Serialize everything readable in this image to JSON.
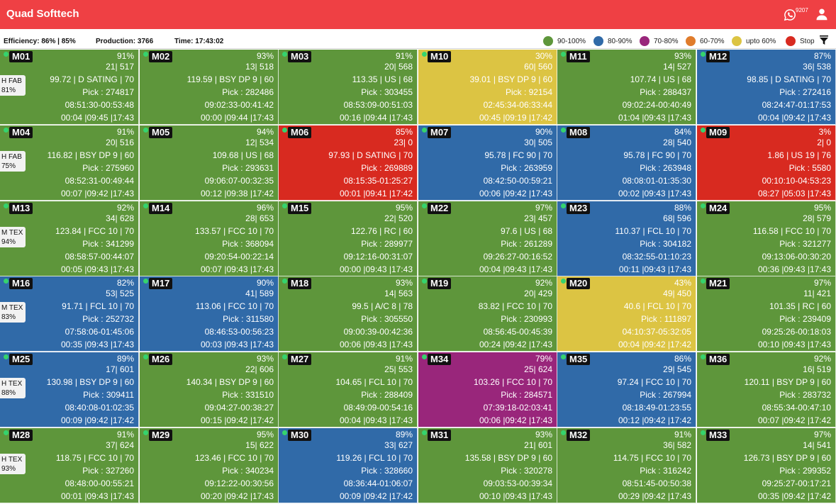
{
  "app": {
    "title": "Quad Softtech",
    "notification_count": "9207"
  },
  "icons": {
    "whatsapp": "whatsapp-icon",
    "user": "user-icon",
    "filter": "filter-icon",
    "status_dot": "status-dot-icon"
  },
  "status": {
    "efficiency_label": "Efficiency:",
    "efficiency_value": "86% | 85%",
    "production_label": "Production:",
    "production_value": "3766",
    "time_label": "Time:",
    "time_value": "17:43:02"
  },
  "legend": [
    {
      "label": "90-100%",
      "color": "#5e963b"
    },
    {
      "label": "80-90%",
      "color": "#306aa8"
    },
    {
      "label": "70-80%",
      "color": "#99267b"
    },
    {
      "label": "60-70%",
      "color": "#e07c2c"
    },
    {
      "label": "upto 60%",
      "color": "#dcc443"
    },
    {
      "label": "Stop",
      "color": "#d82a20"
    }
  ],
  "machines": [
    {
      "id": "M01",
      "pct": "91%",
      "count": "21| 517",
      "design": "99.72 | D SATING | 70",
      "pick": "Pick : 274817",
      "timing": "08:51:30-00:53:48",
      "shift": "00:04 |09:45 |17:43",
      "color": "#5e963b",
      "tag1": "H FAB",
      "tag2": "81%"
    },
    {
      "id": "M02",
      "pct": "93%",
      "count": "13| 518",
      "design": "119.59 | BSY DP 9 | 60",
      "pick": "Pick : 282486",
      "timing": "09:02:33-00:41:42",
      "shift": "00:00 |09:44 |17:43",
      "color": "#5e963b"
    },
    {
      "id": "M03",
      "pct": "91%",
      "count": "20| 568",
      "design": "113.35 | US | 68",
      "pick": "Pick : 303455",
      "timing": "08:53:09-00:51:03",
      "shift": "00:16 |09:44 |17:43",
      "color": "#5e963b"
    },
    {
      "id": "M10",
      "pct": "30%",
      "count": "60| 560",
      "design": "39.01 | BSY DP 9 | 60",
      "pick": "Pick : 92154",
      "timing": "02:45:34-06:33:44",
      "shift": "00:45 |09:19 |17:42",
      "color": "#dcc443"
    },
    {
      "id": "M11",
      "pct": "93%",
      "count": "14| 527",
      "design": "107.74 | US | 68",
      "pick": "Pick : 288437",
      "timing": "09:02:24-00:40:49",
      "shift": "01:04 |09:43 |17:43",
      "color": "#5e963b"
    },
    {
      "id": "M12",
      "pct": "87%",
      "count": "36| 538",
      "design": "98.85 | D SATING | 70",
      "pick": "Pick : 272416",
      "timing": "08:24:47-01:17:53",
      "shift": "00:04 |09:42 |17:43",
      "color": "#306aa8"
    },
    {
      "id": "M04",
      "pct": "91%",
      "count": "20| 516",
      "design": "116.82 | BSY DP 9 | 60",
      "pick": "Pick : 275960",
      "timing": "08:52:31-00:49:44",
      "shift": "00:07 |09:42 |17:43",
      "color": "#5e963b",
      "tag1": "H FAB",
      "tag2": "75%"
    },
    {
      "id": "M05",
      "pct": "94%",
      "count": "12| 534",
      "design": "109.68 | US | 68",
      "pick": "Pick : 293631",
      "timing": "09:06:07-00:32:35",
      "shift": "00:12 |09:38 |17:42",
      "color": "#5e963b"
    },
    {
      "id": "M06",
      "pct": "85%",
      "count": "23| 0",
      "design": "97.93 | D SATING | 70",
      "pick": "Pick : 269889",
      "timing": "08:15:35-01:25:27",
      "shift": "00:01 |09:41 |17:42",
      "color": "#d82a20"
    },
    {
      "id": "M07",
      "pct": "90%",
      "count": "30| 505",
      "design": "95.78 | FC 90 | 70",
      "pick": "Pick : 263959",
      "timing": "08:42:50-00:59:21",
      "shift": "00:06 |09:42 |17:43",
      "color": "#306aa8"
    },
    {
      "id": "M08",
      "pct": "84%",
      "count": "28| 540",
      "design": "95.78 | FC 90 | 70",
      "pick": "Pick : 263948",
      "timing": "08:08:01-01:35:30",
      "shift": "00:02 |09:43 |17:43",
      "color": "#306aa8"
    },
    {
      "id": "M09",
      "pct": "3%",
      "count": "2| 0",
      "design": "1.86 | US 19 | 76",
      "pick": "Pick : 5580",
      "timing": "00:10:10-04:53:23",
      "shift": "08:27 |05:03 |17:43",
      "color": "#d82a20"
    },
    {
      "id": "M13",
      "pct": "92%",
      "count": "34| 628",
      "design": "123.84 | FCC 10 | 70",
      "pick": "Pick : 341299",
      "timing": "08:58:57-00:44:07",
      "shift": "00:05 |09:43 |17:43",
      "color": "#5e963b",
      "tag1": "M TEX",
      "tag2": "94%"
    },
    {
      "id": "M14",
      "pct": "96%",
      "count": "28| 653",
      "design": "133.57 | FCC 10 | 70",
      "pick": "Pick : 368094",
      "timing": "09:20:54-00:22:14",
      "shift": "00:07 |09:43 |17:43",
      "color": "#5e963b"
    },
    {
      "id": "M15",
      "pct": "95%",
      "count": "22| 520",
      "design": "122.76 | RC | 60",
      "pick": "Pick : 289977",
      "timing": "09:12:16-00:31:07",
      "shift": "00:00 |09:43 |17:43",
      "color": "#5e963b"
    },
    {
      "id": "M22",
      "pct": "97%",
      "count": "23| 457",
      "design": "97.6 | US | 68",
      "pick": "Pick : 261289",
      "timing": "09:26:27-00:16:52",
      "shift": "00:04 |09:43 |17:43",
      "color": "#5e963b"
    },
    {
      "id": "M23",
      "pct": "88%",
      "count": "68| 596",
      "design": "110.37 | FCL 10 | 70",
      "pick": "Pick : 304182",
      "timing": "08:32:55-01:10:23",
      "shift": "00:11 |09:43 |17:43",
      "color": "#306aa8"
    },
    {
      "id": "M24",
      "pct": "95%",
      "count": "28| 579",
      "design": "116.58 | FCC 10 | 70",
      "pick": "Pick : 321277",
      "timing": "09:13:06-00:30:20",
      "shift": "00:36 |09:43 |17:43",
      "color": "#5e963b"
    },
    {
      "id": "M16",
      "pct": "82%",
      "count": "53| 525",
      "design": "91.71 | FCL 10 | 70",
      "pick": "Pick : 252732",
      "timing": "07:58:06-01:45:06",
      "shift": "00:35 |09:43 |17:43",
      "color": "#306aa8",
      "tag1": "M TEX",
      "tag2": "83%"
    },
    {
      "id": "M17",
      "pct": "90%",
      "count": "41| 589",
      "design": "113.06 | FCC 10 | 70",
      "pick": "Pick : 311580",
      "timing": "08:46:53-00:56:23",
      "shift": "00:03 |09:43 |17:43",
      "color": "#306aa8"
    },
    {
      "id": "M18",
      "pct": "93%",
      "count": "14| 563",
      "design": "99.5 | A/C 8 | 78",
      "pick": "Pick : 305550",
      "timing": "09:00:39-00:42:36",
      "shift": "00:06 |09:43 |17:43",
      "color": "#5e963b"
    },
    {
      "id": "M19",
      "pct": "92%",
      "count": "20| 429",
      "design": "83.82 | FCC 10 | 70",
      "pick": "Pick : 230993",
      "timing": "08:56:45-00:45:39",
      "shift": "00:24 |09:42 |17:43",
      "color": "#5e963b"
    },
    {
      "id": "M20",
      "pct": "43%",
      "count": "49| 450",
      "design": "40.6 | FCL 10 | 70",
      "pick": "Pick : 111897",
      "timing": "04:10:37-05:32:05",
      "shift": "00:04 |09:42 |17:42",
      "color": "#dcc443"
    },
    {
      "id": "M21",
      "pct": "97%",
      "count": "11| 421",
      "design": "101.35 | RC | 60",
      "pick": "Pick : 239409",
      "timing": "09:25:26-00:18:03",
      "shift": "00:10 |09:43 |17:43",
      "color": "#5e963b"
    },
    {
      "id": "M25",
      "pct": "89%",
      "count": "17| 601",
      "design": "130.98 | BSY DP 9 | 60",
      "pick": "Pick : 309411",
      "timing": "08:40:08-01:02:35",
      "shift": "00:09 |09:42 |17:42",
      "color": "#306aa8",
      "tag1": "H TEX",
      "tag2": "88%"
    },
    {
      "id": "M26",
      "pct": "93%",
      "count": "22| 606",
      "design": "140.34 | BSY DP 9 | 60",
      "pick": "Pick : 331510",
      "timing": "09:04:27-00:38:27",
      "shift": "00:15 |09:42 |17:42",
      "color": "#5e963b"
    },
    {
      "id": "M27",
      "pct": "91%",
      "count": "25| 553",
      "design": "104.65 | FCL 10 | 70",
      "pick": "Pick : 288409",
      "timing": "08:49:09-00:54:16",
      "shift": "00:04 |09:43 |17:43",
      "color": "#5e963b"
    },
    {
      "id": "M34",
      "pct": "79%",
      "count": "25| 624",
      "design": "103.26 | FCC 10 | 70",
      "pick": "Pick : 284571",
      "timing": "07:39:18-02:03:41",
      "shift": "00:06 |09:42 |17:43",
      "color": "#99267b"
    },
    {
      "id": "M35",
      "pct": "86%",
      "count": "29| 545",
      "design": "97.24 | FCC 10 | 70",
      "pick": "Pick : 267994",
      "timing": "08:18:49-01:23:55",
      "shift": "00:12 |09:42 |17:42",
      "color": "#306aa8"
    },
    {
      "id": "M36",
      "pct": "92%",
      "count": "16| 519",
      "design": "120.11 | BSY DP 9 | 60",
      "pick": "Pick : 283732",
      "timing": "08:55:34-00:47:10",
      "shift": "00:07 |09:42 |17:42",
      "color": "#5e963b"
    },
    {
      "id": "M28",
      "pct": "91%",
      "count": "37| 624",
      "design": "118.75 | FCC 10 | 70",
      "pick": "Pick : 327260",
      "timing": "08:48:00-00:55:21",
      "shift": "00:01 |09:43 |17:43",
      "color": "#5e963b",
      "tag1": "H TEX",
      "tag2": "93%"
    },
    {
      "id": "M29",
      "pct": "95%",
      "count": "15| 622",
      "design": "123.46 | FCC 10 | 70",
      "pick": "Pick : 340234",
      "timing": "09:12:22-00:30:56",
      "shift": "00:20 |09:42 |17:43",
      "color": "#5e963b"
    },
    {
      "id": "M30",
      "pct": "89%",
      "count": "33| 627",
      "design": "119.26 | FCL 10 | 70",
      "pick": "Pick : 328660",
      "timing": "08:36:44-01:06:07",
      "shift": "00:09 |09:42 |17:42",
      "color": "#306aa8"
    },
    {
      "id": "M31",
      "pct": "93%",
      "count": "21| 601",
      "design": "135.58 | BSY DP 9 | 60",
      "pick": "Pick : 320278",
      "timing": "09:03:53-00:39:34",
      "shift": "00:10 |09:43 |17:43",
      "color": "#5e963b"
    },
    {
      "id": "M32",
      "pct": "91%",
      "count": "36| 582",
      "design": "114.75 | FCC 10 | 70",
      "pick": "Pick : 316242",
      "timing": "08:51:45-00:50:38",
      "shift": "00:29 |09:42 |17:43",
      "color": "#5e963b"
    },
    {
      "id": "M33",
      "pct": "97%",
      "count": "14| 541",
      "design": "126.73 | BSY DP 9 | 60",
      "pick": "Pick : 299352",
      "timing": "09:25:27-00:17:21",
      "shift": "00:35 |09:42 |17:42",
      "color": "#5e963b"
    }
  ]
}
